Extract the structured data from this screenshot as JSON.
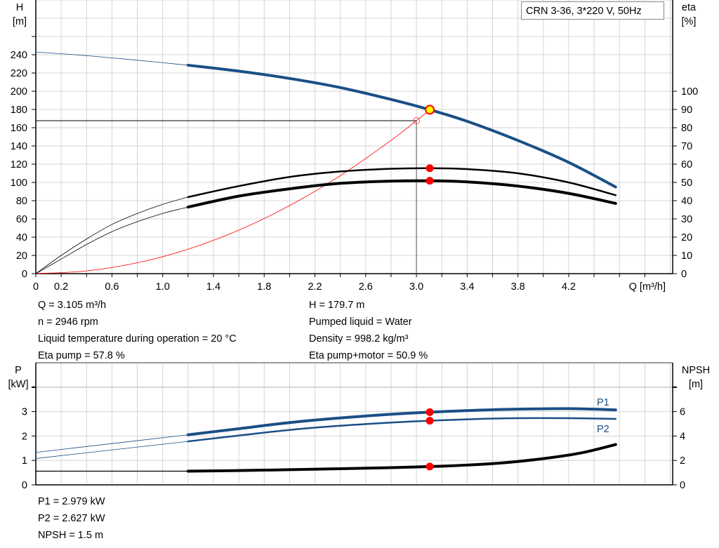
{
  "chart_data": [
    {
      "type": "line",
      "title": "CRN 3-36, 3*220 V, 50Hz",
      "xlabel": "Q [m³/h]",
      "ylabel_left": [
        "H",
        "[m]"
      ],
      "ylabel_right": [
        "eta",
        "[%]"
      ],
      "xlim": [
        0,
        5.0
      ],
      "ylim_left": [
        0,
        300
      ],
      "ylim_right": [
        0,
        115.4
      ],
      "grid": true,
      "x_ticks": [
        "0",
        "0.2",
        "0.6",
        "1.0",
        "1.4",
        "1.8",
        "2.2",
        "2.6",
        "3.0",
        "3.4",
        "3.8",
        "4.2"
      ],
      "y_left_ticks": [
        "0",
        "20",
        "40",
        "60",
        "80",
        "100",
        "120",
        "140",
        "160",
        "180",
        "200",
        "220",
        "240"
      ],
      "y_right_ticks": [
        "0",
        "10",
        "20",
        "30",
        "40",
        "50",
        "60",
        "70",
        "80",
        "90",
        "100"
      ],
      "series": [
        {
          "axis": "left",
          "color": "#1a4f86",
          "x": [
            0,
            0.4,
            0.8,
            1.2,
            1.6,
            2.0,
            2.4,
            2.8,
            3.105,
            3.4,
            3.8,
            4.2,
            4.57
          ],
          "y": [
            243,
            239,
            234,
            228.5,
            222,
            214,
            204,
            191,
            179.7,
            167,
            146,
            122,
            95
          ]
        },
        {
          "axis": "right",
          "color": "#000000",
          "x": [
            0,
            0.2,
            0.4,
            0.6,
            0.8,
            1.0,
            1.2,
            1.6,
            2.0,
            2.4,
            2.8,
            3.105,
            3.4,
            3.8,
            4.2,
            4.57
          ],
          "y": [
            0,
            10,
            19,
            27,
            33,
            38,
            42,
            48,
            53,
            56,
            57.5,
            57.8,
            57.3,
            55,
            50,
            43
          ]
        },
        {
          "axis": "right",
          "color": "#000000",
          "x": [
            0,
            0.2,
            0.4,
            0.6,
            0.8,
            1.0,
            1.2,
            1.6,
            2.0,
            2.4,
            2.8,
            3.105,
            3.4,
            3.8,
            4.2,
            4.57
          ],
          "y": [
            0,
            8,
            16,
            23,
            28.5,
            33,
            36.5,
            42.5,
            46.5,
            49.5,
            50.7,
            50.9,
            50.3,
            48,
            44,
            38.5
          ]
        },
        {
          "axis": "left",
          "color": "#ff0000",
          "x": [
            0,
            0.4,
            0.8,
            1.2,
            1.6,
            2.0,
            2.4,
            2.8,
            3.0,
            3.105
          ],
          "y": [
            0,
            3,
            11.9,
            26.8,
            47.7,
            74.6,
            107.4,
            146.1,
            167.7,
            179.7
          ]
        }
      ],
      "duty_point": {
        "q": 3.105,
        "h": 179.7,
        "eta_pump": 57.8,
        "eta_pump_motor": 50.9
      },
      "reference_point": {
        "q": 3.0,
        "h": 167.7
      }
    },
    {
      "type": "line",
      "xlim": [
        0,
        5.0
      ],
      "ylabel_left": [
        "P",
        "[kW]"
      ],
      "ylabel_right": [
        "NPSH",
        "[m]"
      ],
      "ylim_left": [
        0,
        5
      ],
      "ylim_right": [
        0,
        10
      ],
      "grid": true,
      "y_left_ticks": [
        "0",
        "1",
        "2",
        "3"
      ],
      "y_right_ticks": [
        "0",
        "2",
        "4",
        "6"
      ],
      "series": [
        {
          "name": "P1",
          "axis": "left",
          "color": "#1a4f86",
          "x": [
            0,
            0.6,
            1.2,
            1.6,
            2.0,
            2.4,
            2.8,
            3.105,
            3.5,
            3.8,
            4.2,
            4.57
          ],
          "y": [
            1.33,
            1.69,
            2.05,
            2.3,
            2.55,
            2.74,
            2.89,
            2.979,
            3.06,
            3.1,
            3.12,
            3.07
          ]
        },
        {
          "name": "P2",
          "axis": "left",
          "color": "#1a4f86",
          "x": [
            0,
            0.6,
            1.2,
            1.6,
            2.0,
            2.4,
            2.8,
            3.105,
            3.5,
            3.8,
            4.2,
            4.57
          ],
          "y": [
            1.08,
            1.43,
            1.78,
            2.02,
            2.25,
            2.42,
            2.55,
            2.627,
            2.7,
            2.73,
            2.73,
            2.7
          ]
        },
        {
          "axis": "right",
          "color": "#000000",
          "x": [
            0,
            1.2,
            1.6,
            2.0,
            2.4,
            2.8,
            3.105,
            3.4,
            3.7,
            4.0,
            4.3,
            4.57
          ],
          "y": [
            1.12,
            1.12,
            1.17,
            1.24,
            1.32,
            1.41,
            1.5,
            1.62,
            1.82,
            2.15,
            2.62,
            3.3
          ]
        }
      ],
      "duty_point": {
        "q": 3.105,
        "p1": 2.979,
        "p2": 2.627,
        "npsh": 1.5
      }
    }
  ],
  "info_top": {
    "left": [
      "Q = 3.105 m³/h",
      "n = 2946 rpm",
      "Liquid temperature during operation = 20 °C",
      "Eta pump = 57.8 %"
    ],
    "right": [
      "H = 179.7 m",
      "Pumped liquid = Water",
      "Density = 998.2 kg/m³",
      "Eta pump+motor = 50.9 %"
    ]
  },
  "info_bottom": [
    "P1 = 2.979 kW",
    "P2 = 2.627 kW",
    "NPSH = 1.5 m"
  ]
}
